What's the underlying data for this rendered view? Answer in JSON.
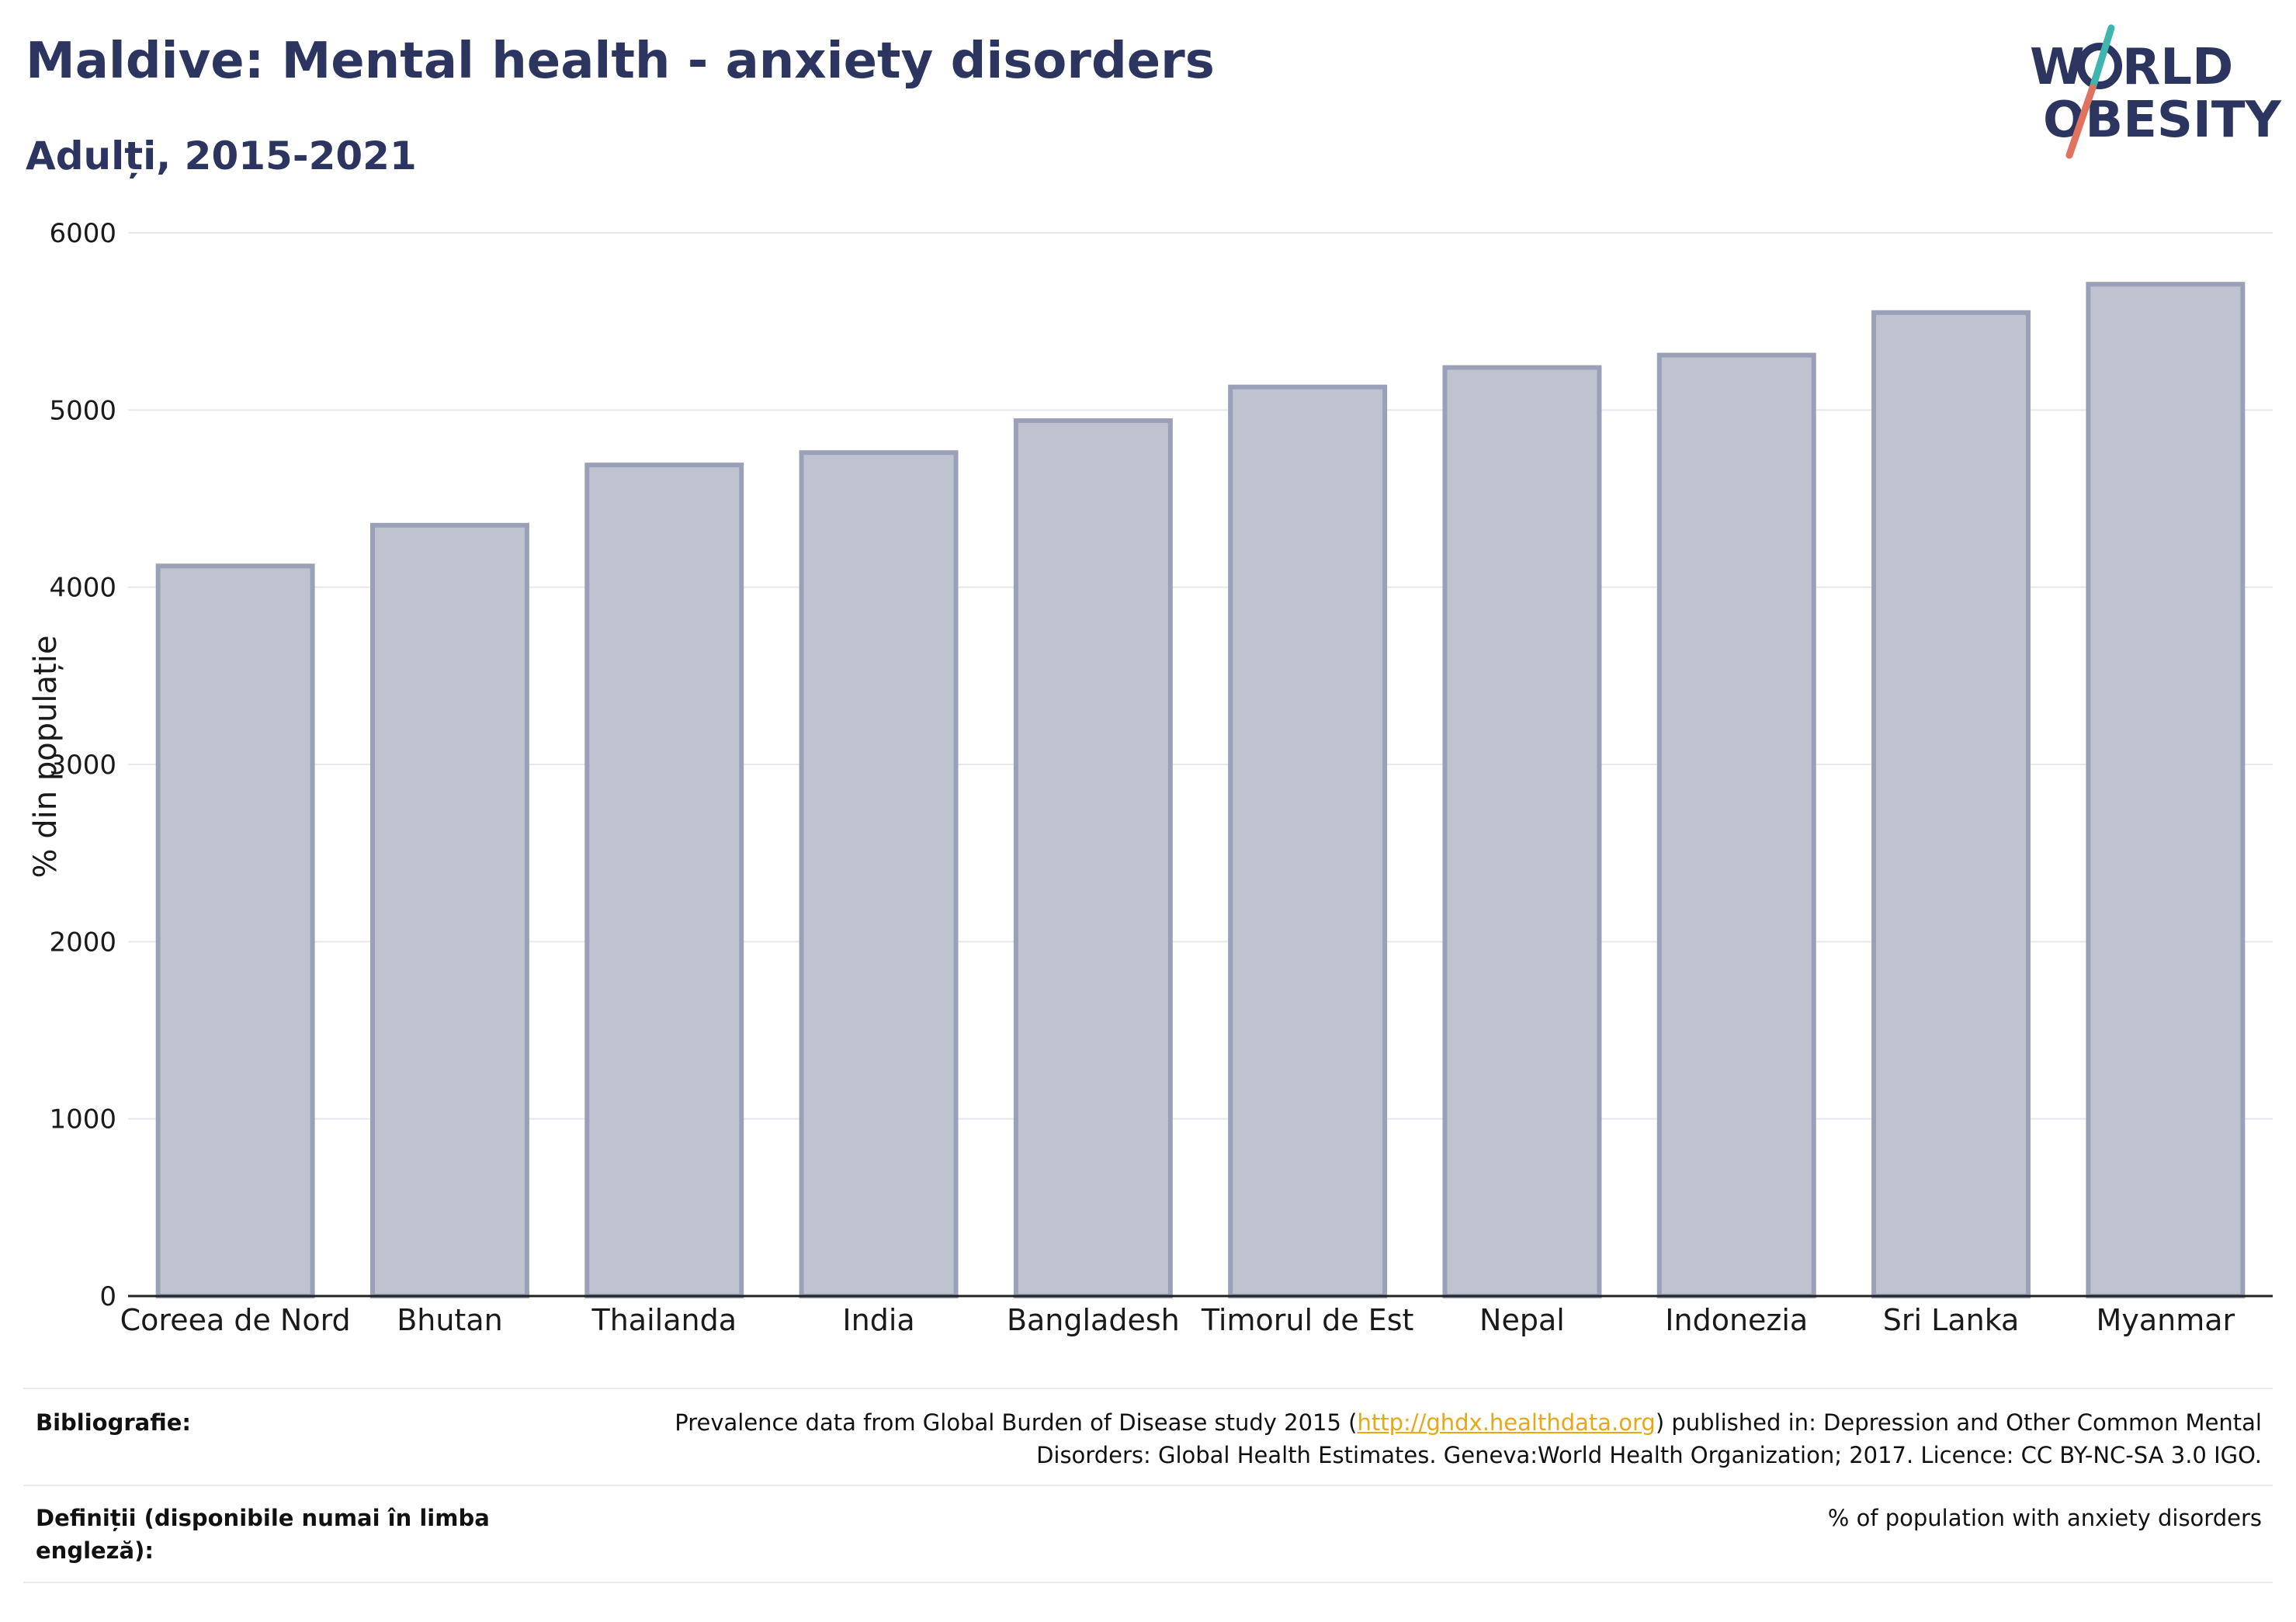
{
  "header": {
    "title": "Maldive: Mental health - anxiety disorders",
    "subtitle": "Adulți, 2015-2021"
  },
  "logo": {
    "line1": "W",
    "line1_rest": "RLD",
    "line2": "OBESITY",
    "text_color": "#2b3560",
    "slash_top_color": "#3fb6ad",
    "slash_bottom_color": "#e0725f"
  },
  "chart_data": {
    "type": "bar",
    "categories": [
      "Coreea de Nord",
      "Bhutan",
      "Thailanda",
      "India",
      "Bangladesh",
      "Timorul de Est",
      "Nepal",
      "Indonezia",
      "Sri Lanka",
      "Myanmar"
    ],
    "values": [
      4120,
      4350,
      4690,
      4760,
      4940,
      5130,
      5240,
      5310,
      5550,
      5710
    ],
    "ylabel": "% din populație",
    "ylim": [
      0,
      6000
    ],
    "yticks": [
      0,
      1000,
      2000,
      3000,
      4000,
      5000,
      6000
    ],
    "grid": true,
    "bar_fill": "#bfc3d0",
    "bar_stroke": "#9aa0b8"
  },
  "footer": {
    "bibliography_label": "Bibliografie:",
    "bibliography_before": "Prevalence data from Global Burden of Disease study 2015 (",
    "bibliography_link": "http://ghdx.healthdata.org",
    "bibliography_after": ") published in: Depression and Other Common Mental Disorders: Global Health Estimates. Geneva:World Health Organization; 2017. Licence: CC BY-NC-SA 3.0 IGO.",
    "definitions_label": "Definiții (disponibile numai în limba engleză):",
    "definitions_text": "% of population with anxiety disorders"
  }
}
